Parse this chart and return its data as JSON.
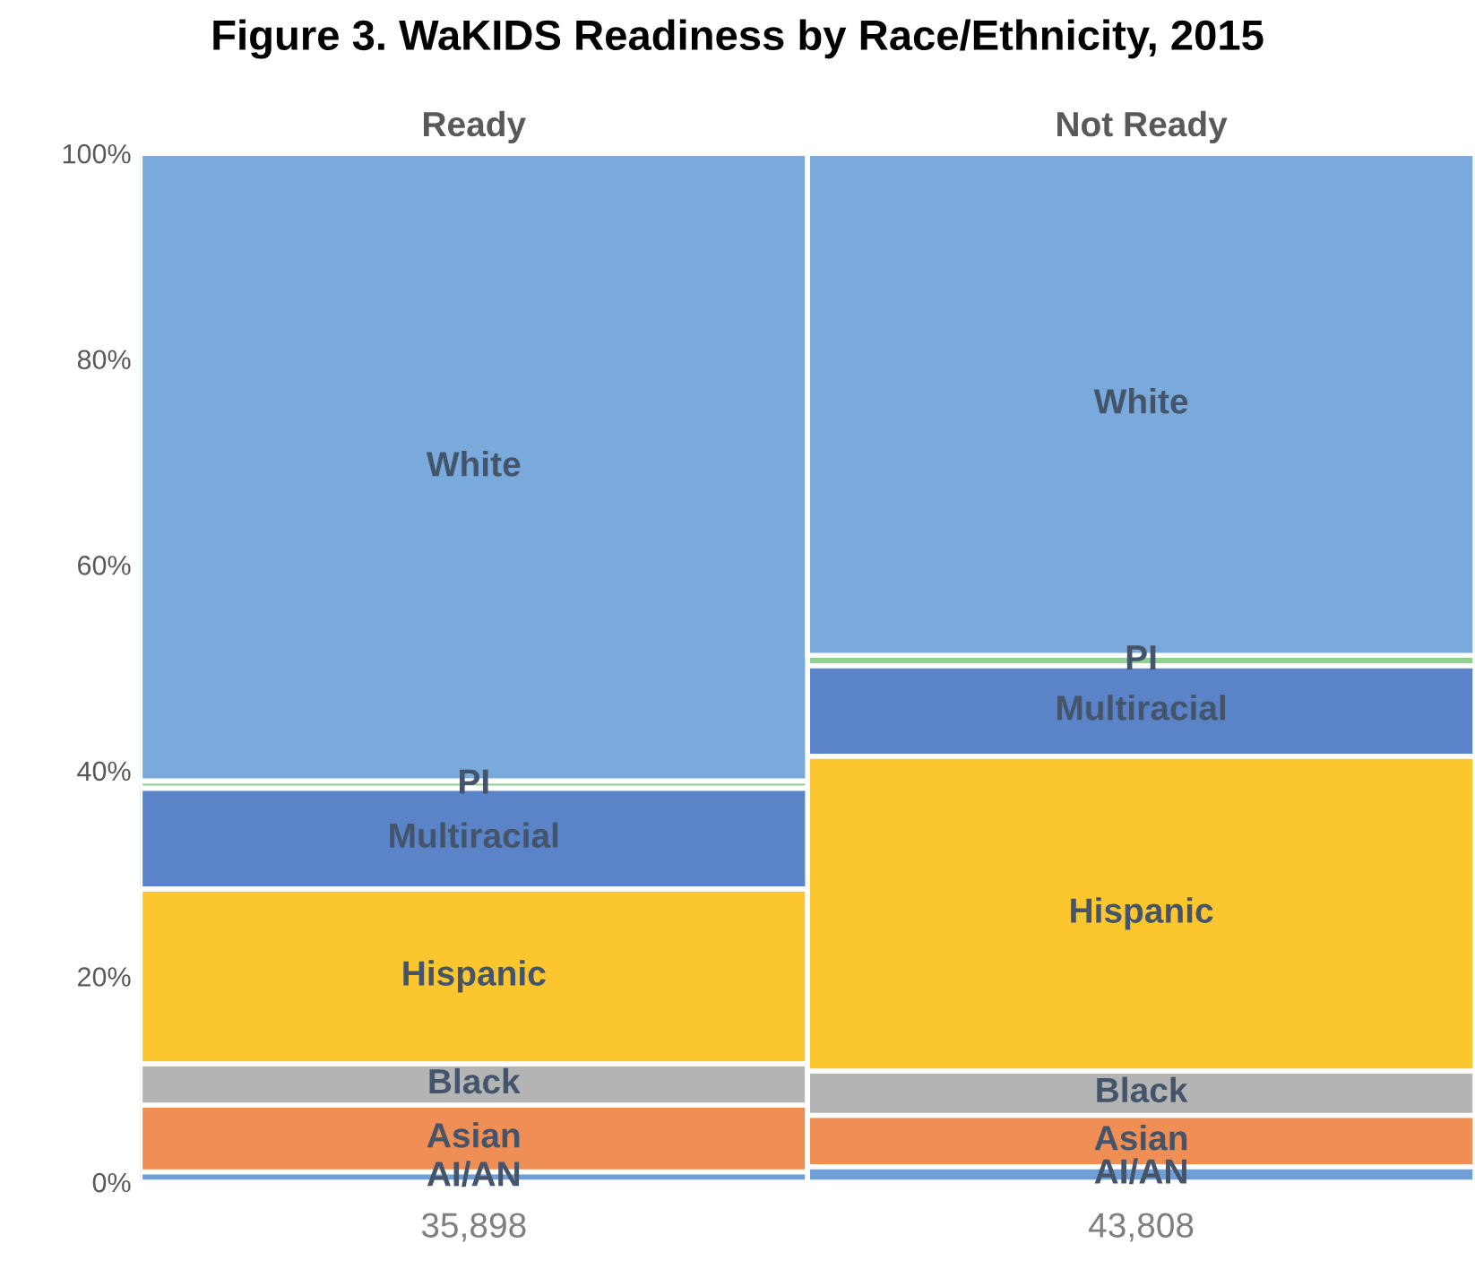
{
  "chart_data": {
    "type": "bar",
    "title": "Figure 3. WaKIDS Readiness by Race/Ethnicity, 2015",
    "categories": [
      "Ready",
      "Not Ready"
    ],
    "stacked": true,
    "series": [
      {
        "name": "AI/AN",
        "color": "#6f9fd6",
        "values": [
          1,
          1.5
        ]
      },
      {
        "name": "Asian",
        "color": "#ef8f55",
        "values": [
          6.5,
          5
        ]
      },
      {
        "name": "Black",
        "color": "#b4b4b4",
        "values": [
          4,
          4.3
        ]
      },
      {
        "name": "Hispanic",
        "color": "#fcc62e",
        "values": [
          17,
          30.6
        ]
      },
      {
        "name": "Multiracial",
        "color": "#5b84c8",
        "values": [
          9.8,
          8.8
        ]
      },
      {
        "name": "PI",
        "color": "#8fd18f",
        "values": [
          0.7,
          1
        ]
      },
      {
        "name": "White",
        "color": "#7aaadc",
        "values": [
          61,
          48.8
        ]
      }
    ],
    "ylim": [
      0,
      100
    ],
    "yticks": [
      {
        "value": 0,
        "label": "0%"
      },
      {
        "value": 20,
        "label": "20%"
      },
      {
        "value": 40,
        "label": "40%"
      },
      {
        "value": 60,
        "label": "60%"
      },
      {
        "value": 80,
        "label": "80%"
      },
      {
        "value": 100,
        "label": "100%"
      }
    ],
    "annotations": [
      "35,898",
      "43,808"
    ],
    "grid": false,
    "legend": false
  }
}
